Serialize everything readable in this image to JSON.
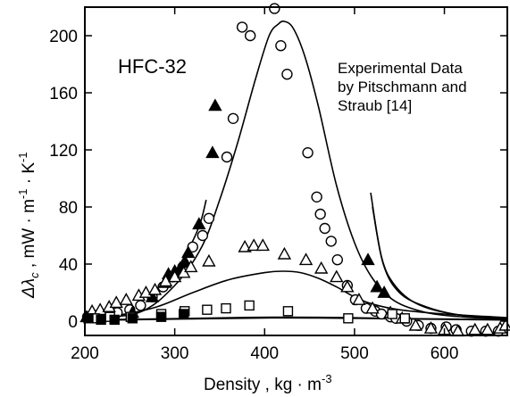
{
  "chart_data": {
    "type": "scatter",
    "xlabel_text": "Density , kg ",
    "xlabel_unit": "· m",
    "xlabel_sup": "-3",
    "ylabel": "Δλc , mW · m-1 · K-1",
    "xlim": [
      200,
      670
    ],
    "ylim": [
      -10,
      220
    ],
    "xticks": [
      200,
      300,
      400,
      500,
      600
    ],
    "yticks": [
      0,
      40,
      80,
      120,
      160,
      200
    ],
    "grid": false,
    "annotations": {
      "fluid": "HFC-32",
      "source_line1": "Experimental Data",
      "source_line2": "by Pitschmann and",
      "source_line3": "Straub [14]"
    },
    "series": [
      {
        "marker": "open-circle",
        "points": [
          [
            203,
            3
          ],
          [
            211,
            4
          ],
          [
            224,
            5
          ],
          [
            236,
            6
          ],
          [
            250,
            8
          ],
          [
            262,
            11
          ],
          [
            275,
            17
          ],
          [
            287,
            24
          ],
          [
            298,
            31
          ],
          [
            309,
            38
          ],
          [
            320,
            52
          ],
          [
            331,
            60
          ],
          [
            338,
            72
          ],
          [
            358,
            115
          ],
          [
            365,
            142
          ],
          [
            375,
            206
          ],
          [
            384,
            200
          ],
          [
            411,
            219
          ],
          [
            418,
            193
          ],
          [
            425,
            173
          ],
          [
            448,
            118
          ],
          [
            458,
            87
          ],
          [
            462,
            75
          ],
          [
            467,
            65
          ],
          [
            474,
            56
          ],
          [
            481,
            43
          ],
          [
            492,
            25
          ],
          [
            501,
            15
          ],
          [
            513,
            9
          ],
          [
            523,
            7
          ],
          [
            530,
            5
          ],
          [
            540,
            3
          ],
          [
            546,
            2
          ],
          [
            558,
            0
          ],
          [
            571,
            -3
          ],
          [
            585,
            -5
          ],
          [
            602,
            -4
          ],
          [
            613,
            -6
          ],
          [
            630,
            -7
          ],
          [
            646,
            -7
          ],
          [
            660,
            -7
          ]
        ],
        "color": "#000000"
      },
      {
        "marker": "filled-triangle",
        "points": [
          [
            202,
            3
          ],
          [
            227,
            4
          ],
          [
            253,
            6
          ],
          [
            275,
            17
          ],
          [
            289,
            27
          ],
          [
            293,
            33
          ],
          [
            300,
            35
          ],
          [
            306,
            37
          ],
          [
            312,
            41
          ],
          [
            315,
            48
          ],
          [
            327,
            68
          ],
          [
            342,
            118
          ],
          [
            345,
            151
          ],
          [
            515,
            43
          ],
          [
            525,
            24
          ],
          [
            533,
            20
          ]
        ],
        "color": "#000000"
      },
      {
        "marker": "open-triangle",
        "points": [
          [
            208,
            7
          ],
          [
            217,
            8
          ],
          [
            227,
            10
          ],
          [
            235,
            13
          ],
          [
            246,
            15
          ],
          [
            260,
            18
          ],
          [
            268,
            20
          ],
          [
            278,
            22
          ],
          [
            290,
            28
          ],
          [
            300,
            31
          ],
          [
            310,
            34
          ],
          [
            318,
            38
          ],
          [
            338,
            42
          ],
          [
            378,
            52
          ],
          [
            388,
            53
          ],
          [
            398,
            53
          ],
          [
            422,
            47
          ],
          [
            446,
            43
          ],
          [
            463,
            37
          ],
          [
            480,
            31
          ],
          [
            492,
            24
          ],
          [
            505,
            15
          ],
          [
            520,
            9
          ],
          [
            540,
            6
          ],
          [
            553,
            2
          ],
          [
            568,
            -3
          ],
          [
            585,
            -5
          ],
          [
            600,
            -6
          ],
          [
            615,
            -7
          ],
          [
            634,
            -6
          ],
          [
            648,
            -6
          ],
          [
            662,
            -5
          ],
          [
            668,
            -3
          ]
        ],
        "color": "#000000"
      },
      {
        "marker": "open-square",
        "points": [
          [
            211,
            2
          ],
          [
            228,
            3
          ],
          [
            251,
            3
          ],
          [
            285,
            5
          ],
          [
            311,
            7
          ],
          [
            336,
            8
          ],
          [
            357,
            9
          ],
          [
            383,
            11
          ],
          [
            426,
            7
          ],
          [
            493,
            2
          ],
          [
            542,
            5
          ],
          [
            556,
            2
          ]
        ],
        "color": "#000000"
      },
      {
        "marker": "filled-square",
        "points": [
          [
            204,
            2
          ],
          [
            218,
            1
          ],
          [
            233,
            1
          ],
          [
            253,
            2
          ],
          [
            285,
            3
          ],
          [
            310,
            5
          ]
        ],
        "color": "#000000"
      }
    ],
    "curves": [
      {
        "points": [
          [
            200,
            2.5
          ],
          [
            260,
            6
          ],
          [
            300,
            25
          ],
          [
            330,
            52
          ],
          [
            350,
            85
          ],
          [
            370,
            125
          ],
          [
            390,
            170
          ],
          [
            405,
            200
          ],
          [
            415,
            208
          ],
          [
            422,
            210
          ],
          [
            432,
            205
          ],
          [
            445,
            185
          ],
          [
            460,
            150
          ],
          [
            480,
            95
          ],
          [
            500,
            55
          ],
          [
            520,
            30
          ],
          [
            545,
            14
          ],
          [
            580,
            6
          ],
          [
            620,
            3
          ],
          [
            670,
            1.5
          ]
        ]
      },
      {
        "points": [
          [
            200,
            2
          ],
          [
            240,
            4.5
          ],
          [
            280,
            10
          ],
          [
            320,
            20
          ],
          [
            360,
            29
          ],
          [
            400,
            34
          ],
          [
            420,
            35
          ],
          [
            440,
            34
          ],
          [
            460,
            30
          ],
          [
            480,
            24
          ],
          [
            500,
            17
          ],
          [
            520,
            12
          ],
          [
            550,
            8
          ],
          [
            600,
            5
          ],
          [
            670,
            2.5
          ]
        ]
      },
      {
        "points": [
          [
            200,
            0.8
          ],
          [
            300,
            1.8
          ],
          [
            380,
            2.6
          ],
          [
            420,
            2.8
          ],
          [
            460,
            2.7
          ],
          [
            500,
            2.4
          ],
          [
            560,
            1.8
          ],
          [
            670,
            1.0
          ]
        ]
      },
      {
        "points": [
          [
            200,
            0.5
          ],
          [
            300,
            1.4
          ],
          [
            380,
            2.1
          ],
          [
            420,
            2.3
          ],
          [
            460,
            2.2
          ],
          [
            500,
            2.0
          ],
          [
            560,
            1.5
          ],
          [
            670,
            0.8
          ]
        ]
      },
      {
        "points": [
          [
            270,
            15
          ],
          [
            295,
            30
          ],
          [
            315,
            50
          ],
          [
            328,
            68
          ],
          [
            335,
            85
          ]
        ]
      },
      {
        "points": [
          [
            518,
            90
          ],
          [
            530,
            45
          ],
          [
            545,
            25
          ],
          [
            570,
            12
          ],
          [
            610,
            5
          ],
          [
            670,
            2
          ]
        ]
      },
      {
        "points": [
          [
            520,
            80
          ],
          [
            532,
            40
          ],
          [
            550,
            20
          ],
          [
            580,
            10
          ],
          [
            620,
            4
          ],
          [
            670,
            2
          ]
        ]
      }
    ]
  }
}
